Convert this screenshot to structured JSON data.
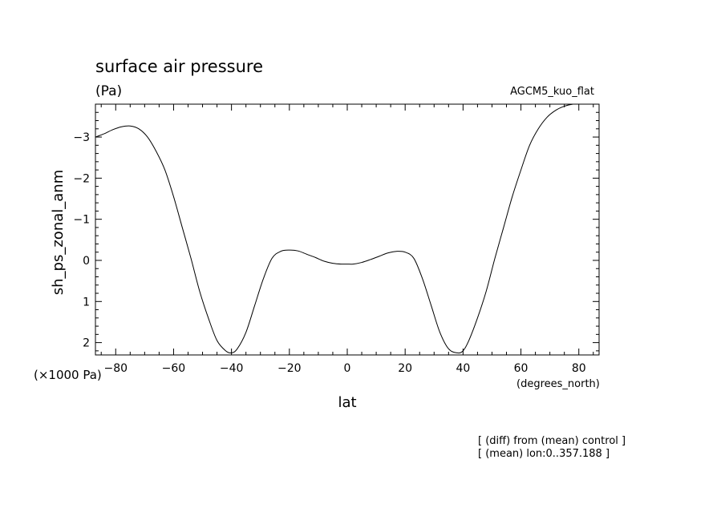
{
  "chart_data": {
    "type": "line",
    "title": "surface air pressure",
    "units": "(Pa)",
    "experiment": "AGCM5_kuo_flat",
    "xlabel": "lat",
    "xunits": "(degrees_north)",
    "ylabel": "sh_ps_zonal_anm",
    "yscale_note": "(×1000 Pa)",
    "notes": [
      "[ (diff) from (mean) control ]",
      "[ (mean) lon:0..357.188 ]"
    ],
    "xlim": [
      -87,
      87
    ],
    "ylim": [
      2.3,
      -3.8
    ],
    "y_inverted": true,
    "xticks": [
      -80,
      -60,
      -40,
      -20,
      0,
      20,
      40,
      60,
      80
    ],
    "xtick_labels": [
      "−80",
      "−60",
      "−40",
      "−20",
      "0",
      "20",
      "40",
      "60",
      "80"
    ],
    "yticks": [
      -3,
      -2,
      -1,
      0,
      1,
      2
    ],
    "ytick_labels": [
      "−3",
      "−2",
      "−1",
      "0",
      "1",
      "2"
    ],
    "grid": false,
    "series": [
      {
        "x": [
          -87,
          -84,
          -81,
          -78,
          -75,
          -72,
          -69,
          -66,
          -63,
          -60,
          -57,
          -54,
          -51,
          -48,
          -45,
          -42,
          -40,
          -38,
          -35,
          -32,
          -29,
          -26,
          -23,
          -20,
          -17,
          -14,
          -11,
          -8,
          -5,
          -2,
          0,
          2,
          5,
          8,
          11,
          14,
          17,
          20,
          23,
          26,
          29,
          32,
          35,
          38,
          40,
          42,
          45,
          48,
          51,
          54,
          57,
          60,
          63,
          66,
          69,
          72,
          75,
          78,
          81,
          84,
          87
        ],
        "y": [
          -3.0,
          -3.08,
          -3.18,
          -3.25,
          -3.27,
          -3.2,
          -3.0,
          -2.65,
          -2.2,
          -1.55,
          -0.8,
          -0.05,
          0.75,
          1.4,
          1.95,
          2.2,
          2.25,
          2.15,
          1.75,
          1.1,
          0.45,
          -0.05,
          -0.22,
          -0.25,
          -0.23,
          -0.15,
          -0.07,
          0.02,
          0.07,
          0.09,
          0.09,
          0.09,
          0.05,
          -0.02,
          -0.1,
          -0.18,
          -0.22,
          -0.2,
          -0.05,
          0.45,
          1.1,
          1.75,
          2.15,
          2.25,
          2.2,
          1.95,
          1.4,
          0.75,
          -0.05,
          -0.8,
          -1.55,
          -2.2,
          -2.8,
          -3.2,
          -3.48,
          -3.65,
          -3.75,
          -3.8,
          -3.8,
          -3.8,
          -3.8
        ]
      }
    ]
  }
}
